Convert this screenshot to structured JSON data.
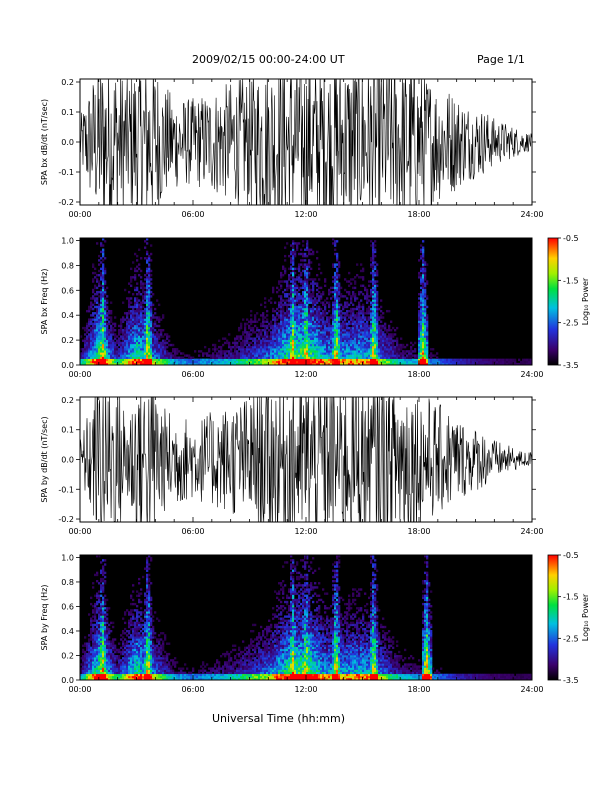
{
  "header": {
    "title": "2009/02/15  00:00-24:00 UT",
    "page": "Page 1/1"
  },
  "footer": {
    "xlabel": "Universal Time (hh:mm)"
  },
  "chart_data": [
    {
      "type": "line",
      "panel": "bx-waveform",
      "ylabel": "SPA bx dB/dt (nT/sec)",
      "x_ticks": [
        "00:00",
        "06:00",
        "12:00",
        "18:00",
        "24:00"
      ],
      "y_ticks": [
        "-0.2",
        "-0.1",
        "0.0",
        "0.1",
        "0.2"
      ],
      "ylim": [
        -0.21,
        0.21
      ],
      "x_hours": [
        0,
        0.5,
        1,
        1.5,
        2,
        2.5,
        3,
        3.5,
        4,
        4.5,
        5,
        5.5,
        6,
        6.5,
        7,
        7.5,
        8,
        8.5,
        9,
        9.5,
        10,
        10.5,
        11,
        11.5,
        12,
        12.5,
        13,
        13.5,
        14,
        14.5,
        15,
        15.5,
        16,
        16.5,
        17,
        17.5,
        18,
        18.5,
        19,
        19.5,
        20,
        20.5,
        21,
        21.5,
        22,
        22.5,
        23,
        23.5,
        24
      ],
      "envelope": [
        0.06,
        0.14,
        0.21,
        0.21,
        0.21,
        0.16,
        0.21,
        0.21,
        0.21,
        0.14,
        0.12,
        0.11,
        0.11,
        0.12,
        0.13,
        0.14,
        0.15,
        0.16,
        0.17,
        0.19,
        0.21,
        0.21,
        0.21,
        0.21,
        0.21,
        0.21,
        0.21,
        0.21,
        0.21,
        0.21,
        0.21,
        0.21,
        0.21,
        0.21,
        0.21,
        0.21,
        0.19,
        0.17,
        0.15,
        0.14,
        0.12,
        0.1,
        0.09,
        0.08,
        0.06,
        0.05,
        0.04,
        0.03,
        0.02
      ]
    },
    {
      "type": "heatmap",
      "panel": "bx-spectrogram",
      "ylabel": "SPA bx Freq (Hz)",
      "x_ticks": [
        "00:00",
        "06:00",
        "12:00",
        "18:00",
        "24:00"
      ],
      "y_ticks": [
        "0.0",
        "0.2",
        "0.4",
        "0.6",
        "0.8",
        "1.0"
      ],
      "ylim": [
        0,
        1.02
      ],
      "colorbar": {
        "label": "Log₁₀ Power",
        "ticks": [
          "-0.5",
          "-1.5",
          "-2.5",
          "-3.5"
        ],
        "range": [
          -3.5,
          -0.5
        ]
      },
      "bursts_hours": [
        1.2,
        3.6,
        11.3,
        12.0,
        13.6,
        15.6,
        18.2
      ],
      "activity_hours": [
        0,
        1,
        2,
        3,
        4,
        5,
        6,
        7,
        8,
        9,
        10,
        11,
        12,
        13,
        14,
        15,
        16,
        17,
        18,
        19,
        20,
        21,
        22,
        23,
        24
      ],
      "activity_level": [
        0.35,
        0.9,
        0.45,
        0.85,
        0.6,
        0.35,
        0.3,
        0.35,
        0.4,
        0.5,
        0.6,
        0.85,
        0.95,
        0.7,
        0.7,
        0.75,
        0.6,
        0.4,
        0.35,
        0.3,
        0.2,
        0.15,
        0.12,
        0.1,
        0.1
      ]
    },
    {
      "type": "line",
      "panel": "by-waveform",
      "ylabel": "SPA by dB/dt (nT/sec)",
      "x_ticks": [
        "00:00",
        "06:00",
        "12:00",
        "18:00",
        "24:00"
      ],
      "y_ticks": [
        "-0.2",
        "-0.1",
        "0.0",
        "0.1",
        "0.2"
      ],
      "ylim": [
        -0.21,
        0.21
      ],
      "x_hours": [
        0,
        0.5,
        1,
        1.5,
        2,
        2.5,
        3,
        3.5,
        4,
        4.5,
        5,
        5.5,
        6,
        6.5,
        7,
        7.5,
        8,
        8.5,
        9,
        9.5,
        10,
        10.5,
        11,
        11.5,
        12,
        12.5,
        13,
        13.5,
        14,
        14.5,
        15,
        15.5,
        16,
        16.5,
        17,
        17.5,
        18,
        18.5,
        19,
        19.5,
        20,
        20.5,
        21,
        21.5,
        22,
        22.5,
        23,
        23.5,
        24
      ],
      "envelope": [
        0.05,
        0.13,
        0.21,
        0.21,
        0.2,
        0.12,
        0.21,
        0.21,
        0.21,
        0.13,
        0.12,
        0.11,
        0.1,
        0.11,
        0.12,
        0.13,
        0.14,
        0.15,
        0.16,
        0.18,
        0.2,
        0.21,
        0.21,
        0.21,
        0.21,
        0.21,
        0.21,
        0.21,
        0.21,
        0.21,
        0.21,
        0.21,
        0.21,
        0.21,
        0.21,
        0.21,
        0.18,
        0.16,
        0.14,
        0.13,
        0.11,
        0.09,
        0.08,
        0.07,
        0.05,
        0.04,
        0.03,
        0.02,
        0.02
      ]
    },
    {
      "type": "heatmap",
      "panel": "by-spectrogram",
      "ylabel": "SPA by Freq (Hz)",
      "x_ticks": [
        "00:00",
        "06:00",
        "12:00",
        "18:00",
        "24:00"
      ],
      "y_ticks": [
        "0.0",
        "0.2",
        "0.4",
        "0.6",
        "0.8",
        "1.0"
      ],
      "ylim": [
        0,
        1.02
      ],
      "colorbar": {
        "label": "Log₁₀ Power",
        "ticks": [
          "-0.5",
          "-1.5",
          "-2.5",
          "-3.5"
        ],
        "range": [
          -3.5,
          -0.5
        ]
      },
      "bursts_hours": [
        1.2,
        3.6,
        11.3,
        12.0,
        13.6,
        15.6,
        18.4
      ],
      "activity_hours": [
        0,
        1,
        2,
        3,
        4,
        5,
        6,
        7,
        8,
        9,
        10,
        11,
        12,
        13,
        14,
        15,
        16,
        17,
        18,
        19,
        20,
        21,
        22,
        23,
        24
      ],
      "activity_level": [
        0.35,
        0.9,
        0.45,
        0.85,
        0.6,
        0.35,
        0.3,
        0.35,
        0.4,
        0.5,
        0.6,
        0.85,
        0.95,
        0.7,
        0.7,
        0.75,
        0.6,
        0.4,
        0.35,
        0.3,
        0.2,
        0.15,
        0.12,
        0.1,
        0.1
      ]
    }
  ]
}
